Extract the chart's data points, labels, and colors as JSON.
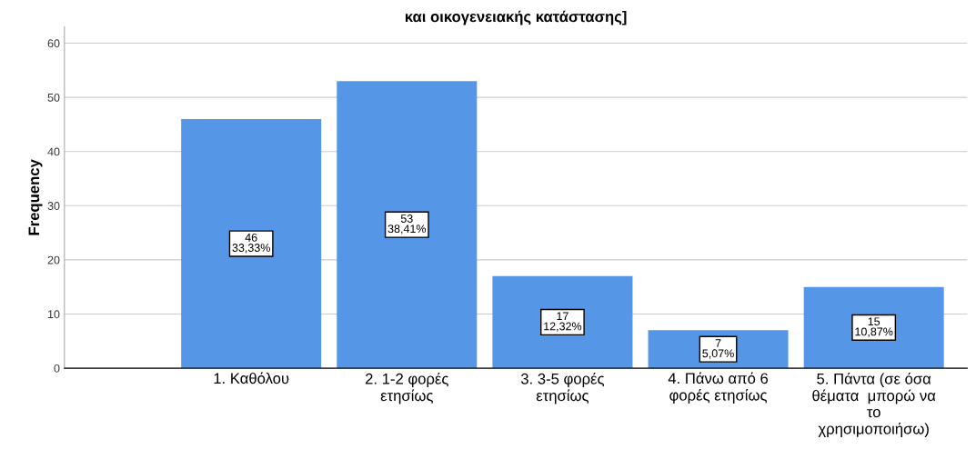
{
  "chart_data": {
    "type": "bar",
    "title": "και οικογενειακής κατάστασης]",
    "ylabel": "Frequency",
    "categories": [
      "1. Καθόλου",
      "2. 1-2 φορές\nετησίως",
      "3. 3-5 φορές\nετησίως",
      "4. Πάνω από 6\nφορές ετησίως",
      "5. Πάντα (σε όσα\nθέματα  μπορώ να\nτο\nχρησιμοποιήσω)"
    ],
    "values": [
      46,
      53,
      17,
      7,
      15
    ],
    "value_labels": [
      "46\n33,33%",
      "53\n38,41%",
      "17\n12,32%",
      "7\n5,07%",
      "15\n10,87%"
    ],
    "color": "#5596e6",
    "ylim": [
      0,
      63
    ],
    "yticks": [
      0,
      10,
      20,
      30,
      40,
      50,
      60
    ],
    "grid": "y",
    "legend": false
  }
}
